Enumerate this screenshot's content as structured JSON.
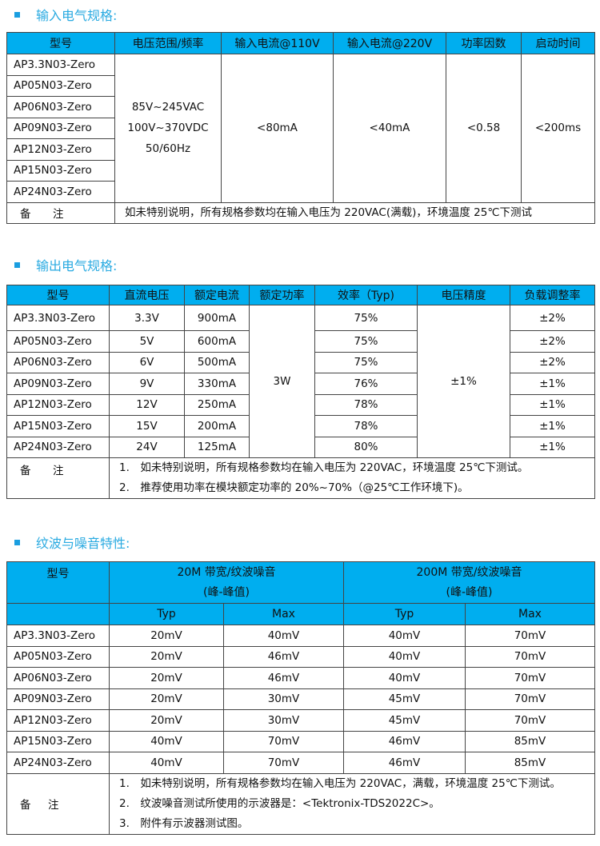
{
  "section1": {
    "title": "输入电气规格:",
    "headers": [
      "型号",
      "电压范围/频率",
      "输入电流@110V",
      "输入电流@220V",
      "功率因数",
      "启动时间"
    ],
    "models": [
      "AP3.3N03-Zero",
      "AP05N03-Zero",
      "AP06N03-Zero",
      "AP09N03-Zero",
      "AP12N03-Zero",
      "AP15N03-Zero",
      "AP24N03-Zero"
    ],
    "voltage_lines": [
      "85V~245VAC",
      "100V~370VDC",
      "50/60Hz"
    ],
    "current_110v": "<80mA",
    "current_220v": "<40mA",
    "power_factor": "<0.58",
    "startup_time": "<200ms",
    "note_label": [
      "备",
      "注"
    ],
    "notes": [
      "如未特别说明，所有规格参数均在输入电压为 220VAC(满载)，环境温度 25℃下测试"
    ]
  },
  "section2": {
    "title": "输出电气规格:",
    "headers": [
      "型号",
      "直流电压",
      "额定电流",
      "额定功率",
      "效率（Typ)",
      "电压精度",
      "负载调整率"
    ],
    "rows": [
      [
        "AP3.3N03-Zero",
        "3.3V",
        "900mA",
        "75%",
        "±2%"
      ],
      [
        "AP05N03-Zero",
        "5V",
        "600mA",
        "75%",
        "±2%"
      ],
      [
        "AP06N03-Zero",
        "6V",
        "500mA",
        "75%",
        "±2%"
      ],
      [
        "AP09N03-Zero",
        "9V",
        "330mA",
        "76%",
        "±1%"
      ],
      [
        "AP12N03-Zero",
        "12V",
        "250mA",
        "78%",
        "±1%"
      ],
      [
        "AP15N03-Zero",
        "15V",
        "200mA",
        "78%",
        "±1%"
      ],
      [
        "AP24N03-Zero",
        "24V",
        "125mA",
        "80%",
        "±1%"
      ]
    ],
    "rated_power": "3W",
    "voltage_accuracy": "±1%",
    "note_label": [
      "备",
      "注"
    ],
    "notes": [
      "1.　如未特别说明，所有规格参数均在输入电压为 220VAC，环境温度 25℃下测试。",
      "2.　推荐使用功率在模块额定功率的 20%~70%（@25℃工作环境下)。"
    ]
  },
  "section3": {
    "title": "纹波与噪音特性:",
    "header_model": "型号",
    "group_headers": [
      [
        "20M 带宽/纹波噪音",
        "(峰-峰值)"
      ],
      [
        "200M 带宽/纹波噪音",
        "(峰-峰值)"
      ]
    ],
    "sub_headers": [
      "Typ",
      "Max",
      "Typ",
      "Max"
    ],
    "rows": [
      [
        "AP3.3N03-Zero",
        "20mV",
        "40mV",
        "40mV",
        "70mV"
      ],
      [
        "AP05N03-Zero",
        "20mV",
        "46mV",
        "40mV",
        "70mV"
      ],
      [
        "AP06N03-Zero",
        "20mV",
        "46mV",
        "40mV",
        "70mV"
      ],
      [
        "AP09N03-Zero",
        "20mV",
        "30mV",
        "45mV",
        "70mV"
      ],
      [
        "AP12N03-Zero",
        "20mV",
        "30mV",
        "45mV",
        "70mV"
      ],
      [
        "AP15N03-Zero",
        "40mV",
        "70mV",
        "46mV",
        "85mV"
      ],
      [
        "AP24N03-Zero",
        "40mV",
        "70mV",
        "46mV",
        "85mV"
      ]
    ],
    "note_label": [
      "备",
      "注"
    ],
    "notes": [
      "1.　如未特别说明，所有规格参数均在输入电压为 220VAC，满载，环境温度 25℃下测试。",
      "2.　纹波噪音测试所使用的示波器是：<Tektronix-TDS2022C>。",
      "3.　附件有示波器测试图。"
    ]
  },
  "colors": {
    "header_bg": "#00aeef",
    "title": "#29aae1"
  }
}
